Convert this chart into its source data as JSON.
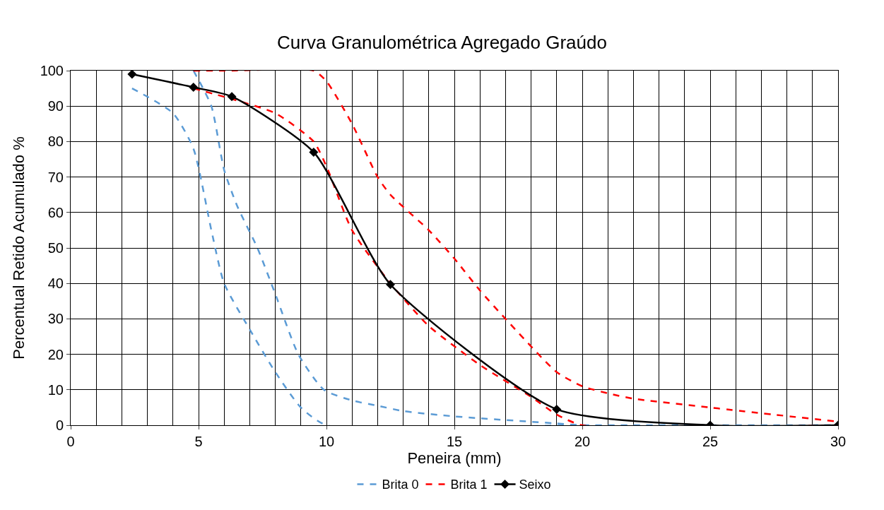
{
  "chart_data": {
    "type": "line",
    "title": "Curva Granulométrica Agregado Graúdo",
    "xlabel": "Peneira (mm)",
    "ylabel": "Percentual Retido Acumulado %",
    "xlim": [
      0,
      30
    ],
    "xticks": [
      0,
      5,
      10,
      15,
      20,
      25,
      30
    ],
    "ylim": [
      0,
      100
    ],
    "yticks": [
      0,
      10,
      20,
      30,
      40,
      50,
      60,
      70,
      80,
      90,
      100
    ],
    "grid": true,
    "legend": "bottom",
    "series": [
      {
        "name": "Brita 0",
        "color": "#5b9bd5",
        "line_style": "dashed",
        "marker": "none",
        "x": [
          2.4,
          4.0,
          4.8,
          5.5,
          6.0,
          7.0,
          8.0,
          9.0,
          10.0,
          20.0,
          30.0,
          null,
          4.8,
          5.5,
          6.0,
          6.5,
          7.3,
          8.0,
          8.9,
          9.9,
          11.0,
          12.0,
          13.0,
          15.0,
          19.0,
          20.0,
          30.0
        ],
        "values": [
          95,
          88,
          78,
          55,
          40,
          27,
          15,
          5,
          0,
          0,
          0,
          null,
          100,
          90,
          72,
          62,
          50,
          37,
          20,
          10,
          7,
          5.5,
          4,
          2.5,
          0.5,
          0,
          0
        ]
      },
      {
        "name": "Brita 1",
        "color": "#ff0000",
        "line_style": "dashed",
        "marker": "none",
        "x": [
          4.8,
          6.3,
          8.0,
          9.5,
          10.0,
          11.0,
          12.5,
          14.0,
          16.0,
          18.0,
          19.0,
          20.0,
          30.0,
          null,
          4.8,
          6.3,
          9.5,
          10.0,
          11.0,
          12.0,
          12.5,
          14.0,
          15.0,
          16.0,
          17.0,
          19.0,
          20.0,
          21.0,
          22.0,
          25.0,
          30.0
        ],
        "values": [
          95,
          92,
          88,
          80,
          73,
          55,
          40,
          28,
          17,
          8,
          3,
          0,
          0,
          null,
          100,
          100,
          100,
          97,
          85,
          70,
          65,
          55,
          47,
          38,
          30,
          15,
          11,
          9,
          7.5,
          5,
          1
        ]
      },
      {
        "name": "Seixo",
        "color": "#000000",
        "line_style": "solid",
        "marker": "diamond",
        "x": [
          2.4,
          4.8,
          6.3,
          9.5,
          12.5,
          19.0,
          25.0,
          30.0
        ],
        "values": [
          99,
          95.3,
          92.7,
          77,
          39.7,
          4.5,
          0,
          0
        ]
      }
    ]
  }
}
